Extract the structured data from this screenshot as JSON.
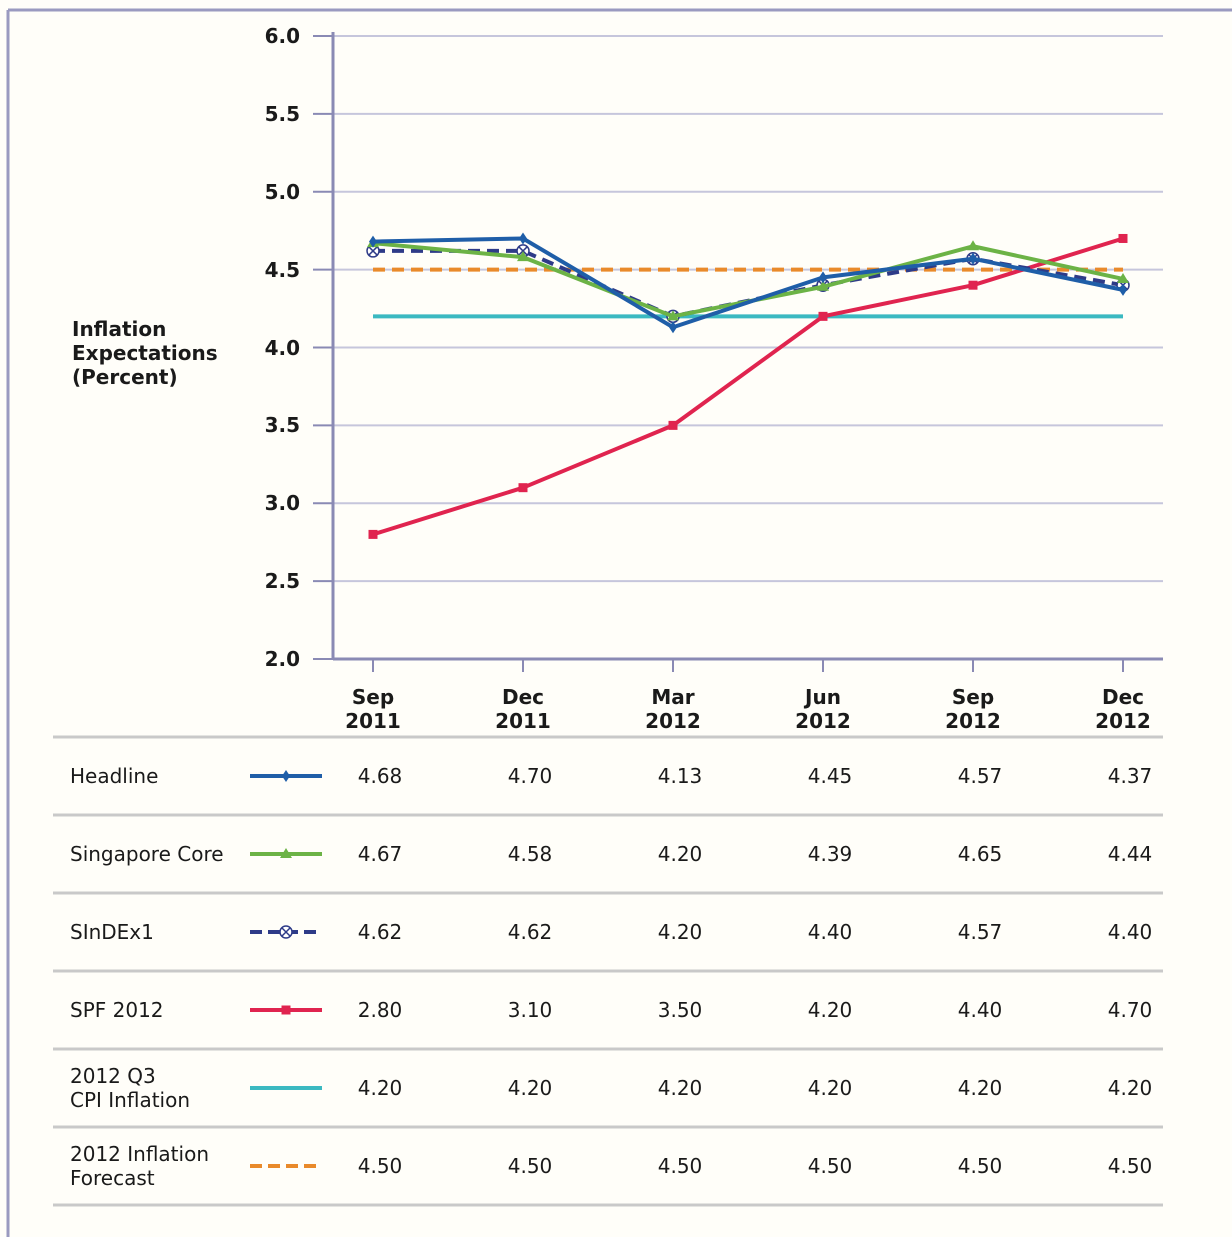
{
  "chart_data": {
    "type": "line",
    "ylabel": "Inflation Expectations (Percent)",
    "categories": [
      "Sep 2011",
      "Dec 2011",
      "Mar 2012",
      "Jun 2012",
      "Sep 2012",
      "Dec 2012"
    ],
    "ylim": [
      2,
      6
    ],
    "yticks": [
      {
        "value": 2,
        "label": "2.0"
      },
      2.5,
      {
        "value": 3,
        "label": "3.0"
      },
      3.5,
      {
        "value": 4,
        "label": "4.0"
      },
      4.5,
      {
        "value": 5,
        "label": "5.0"
      },
      5.5,
      {
        "value": 6,
        "label": "6.0"
      }
    ],
    "grid": true,
    "series": [
      {
        "name": "Headline",
        "color": "#1f5ea8",
        "marker": "diamond",
        "dash": false,
        "values": [
          4.68,
          4.7,
          4.13,
          4.45,
          4.57,
          4.37
        ],
        "value_labels": [
          "4.68",
          "4.70",
          "4.13",
          "4.45",
          "4.57",
          "4.37"
        ]
      },
      {
        "name": "Singapore Core",
        "color": "#6cb346",
        "marker": "triangle",
        "dash": false,
        "values": [
          4.67,
          4.58,
          4.2,
          4.39,
          4.65,
          4.44
        ],
        "value_labels": [
          "4.67",
          "4.58",
          "4.20",
          "4.39",
          "4.65",
          "4.44"
        ]
      },
      {
        "name": "SInDEx1",
        "color": "#2e3b88",
        "marker": "xcircle",
        "dash": true,
        "values": [
          4.62,
          4.62,
          4.2,
          4.4,
          4.57,
          4.4
        ],
        "value_labels": [
          "4.62",
          "4.62",
          "4.20",
          "4.40",
          "4.57",
          "4.40"
        ]
      },
      {
        "name": "SPF 2012",
        "color": "#e0244f",
        "marker": "square",
        "dash": false,
        "values": [
          2.8,
          3.1,
          3.5,
          4.2,
          4.4,
          4.7
        ],
        "value_labels": [
          "2.80",
          "3.10",
          "3.50",
          "4.20",
          "4.40",
          "4.70"
        ]
      },
      {
        "name": "2012 Q3\nCPI Inflation",
        "color": "#3bb9c1",
        "marker": "none",
        "dash": false,
        "values": [
          4.2,
          4.2,
          4.2,
          4.2,
          4.2,
          4.2
        ],
        "value_labels": [
          "4.20",
          "4.20",
          "4.20",
          "4.20",
          "4.20",
          "4.20"
        ]
      },
      {
        "name": "2012 Inflation\nForecast",
        "color": "#e98a2b",
        "marker": "none",
        "dash": true,
        "values": [
          4.5,
          4.5,
          4.5,
          4.5,
          4.5,
          4.5
        ],
        "value_labels": [
          "4.50",
          "4.50",
          "4.50",
          "4.50",
          "4.50",
          "4.50"
        ]
      }
    ]
  }
}
